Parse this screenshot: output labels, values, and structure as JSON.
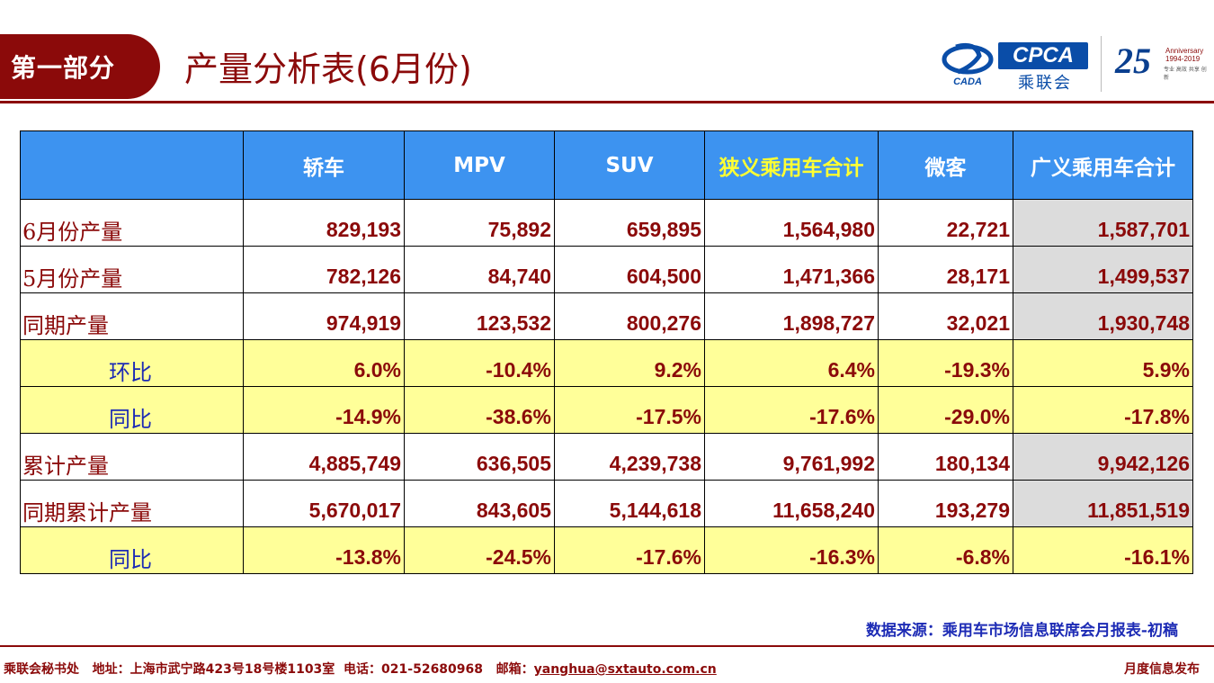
{
  "header": {
    "section_label": "第一部分",
    "title": "产量分析表(6月份)",
    "logos": {
      "cada_text": "CADA",
      "cpca_text": "CPCA",
      "cpca_sub": "乘联会",
      "anniversary_number": "25",
      "anniversary_label": "Anniversary",
      "anniversary_years": "1994-2019",
      "anniversary_tagline": "专业 高效 共享 创新"
    }
  },
  "table": {
    "columns": [
      "",
      "轿车",
      "MPV",
      "SUV",
      "狭义乘用车合计",
      "微客",
      "广义乘用车合计"
    ],
    "rows": [
      {
        "label": "6月份产量",
        "values": [
          "829,193",
          "75,892",
          "659,895",
          "1,564,980",
          "22,721",
          "1,587,701"
        ]
      },
      {
        "label": "5月份产量",
        "values": [
          "782,126",
          "84,740",
          "604,500",
          "1,471,366",
          "28,171",
          "1,499,537"
        ]
      },
      {
        "label": "同期产量",
        "values": [
          "974,919",
          "123,532",
          "800,276",
          "1,898,727",
          "32,021",
          "1,930,748"
        ]
      },
      {
        "label": "环比",
        "values": [
          "6.0%",
          "-10.4%",
          "9.2%",
          "6.4%",
          "-19.3%",
          "5.9%"
        ]
      },
      {
        "label": "同比",
        "values": [
          "-14.9%",
          "-38.6%",
          "-17.5%",
          "-17.6%",
          "-29.0%",
          "-17.8%"
        ]
      },
      {
        "label": "累计产量",
        "values": [
          "4,885,749",
          "636,505",
          "4,239,738",
          "9,761,992",
          "180,134",
          "9,942,126"
        ]
      },
      {
        "label": "同期累计产量",
        "values": [
          "5,670,017",
          "843,605",
          "5,144,618",
          "11,658,240",
          "193,279",
          "11,851,519"
        ]
      },
      {
        "label": "同比",
        "values": [
          "-13.8%",
          "-24.5%",
          "-17.6%",
          "-16.3%",
          "-6.8%",
          "-16.1%"
        ]
      }
    ]
  },
  "source_note": "数据来源：乘用车市场信息联席会月报表-初稿",
  "footer": {
    "org": "乘联会秘书处",
    "address_label": "地址：",
    "address": "上海市武宁路423号18号楼1103室",
    "phone_label": "电话：",
    "phone": "021-52680968",
    "email_label": "邮箱：",
    "email": "yanghua@sxtauto.com.cn",
    "right_text": "月度信息发布"
  },
  "colors": {
    "brand_red": "#8b0a0a",
    "header_blue": "#3d93f0",
    "highlight_yellow": "#ffff99",
    "header_yellow_text": "#ffff33",
    "label_blue": "#1d2bb5",
    "gray_cell": "#dcdcdc"
  }
}
